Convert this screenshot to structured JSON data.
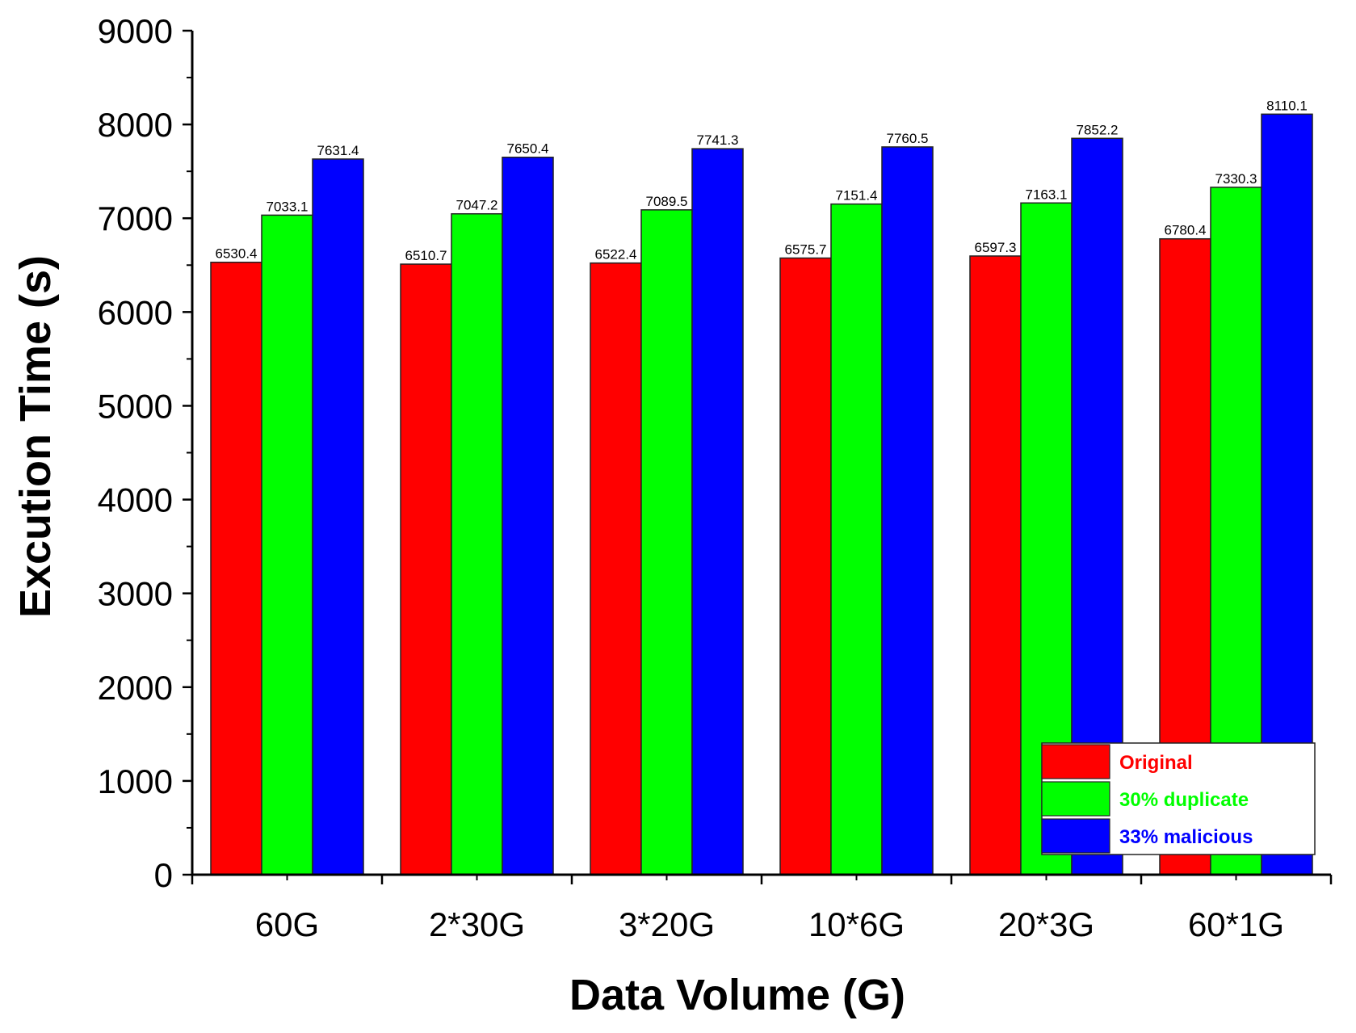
{
  "chart_data": {
    "type": "bar",
    "title": "",
    "xlabel": "Data Volume (G)",
    "ylabel": "Excution Time (s)",
    "categories": [
      "60G",
      "2*30G",
      "3*20G",
      "10*6G",
      "20*3G",
      "60*1G"
    ],
    "ylim": [
      0,
      9000
    ],
    "yticks": [
      0,
      1000,
      2000,
      3000,
      4000,
      5000,
      6000,
      7000,
      8000,
      9000
    ],
    "series": [
      {
        "name": "Original",
        "color": "#ff0000",
        "values": [
          6530.4,
          6510.7,
          6522.4,
          6575.7,
          6597.3,
          6780.4
        ],
        "labels": [
          "6530.4",
          "6510.7",
          "6522.4",
          "6575.7",
          "6597.3",
          "6780.4"
        ]
      },
      {
        "name": "30% duplicate",
        "color": "#00ff00",
        "values": [
          7033.1,
          7047.2,
          7089.5,
          7151.4,
          7163.1,
          7330.3
        ],
        "labels": [
          "7033.1",
          "7047.2",
          "7089.5",
          "7151.4",
          "7163.1",
          "7330.3"
        ]
      },
      {
        "name": "33% malicious",
        "color": "#0000ff",
        "values": [
          7631.4,
          7650.4,
          7741.3,
          7760.5,
          7852.2,
          8110.1
        ],
        "labels": [
          "7631.4",
          "7650.4",
          "7741.3",
          "7760.5",
          "7852.2",
          "8110.1"
        ]
      }
    ],
    "legend": {
      "position": "bottom-right"
    },
    "grid": false
  }
}
